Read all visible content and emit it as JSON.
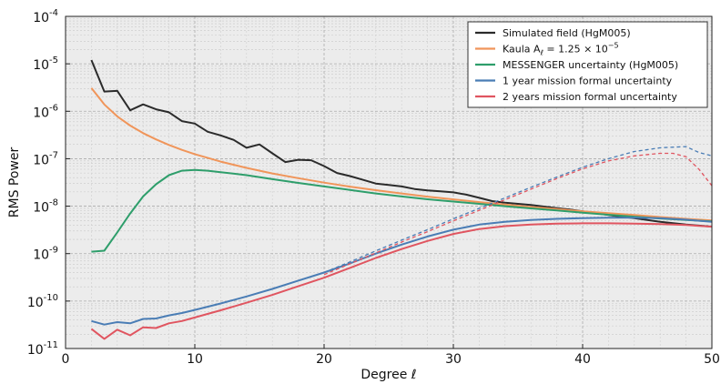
{
  "chart_data": {
    "type": "line",
    "xlabel": "Degree ℓ",
    "ylabel": "RMS Power",
    "xlim": [
      0,
      50
    ],
    "ylim": [
      1e-11,
      0.0001
    ],
    "yscale": "log",
    "grid": true,
    "legend_position": "top-right",
    "x_ticks": [
      "0",
      "10",
      "20",
      "30",
      "40",
      "50"
    ],
    "y_ticks": [
      {
        "base": "10",
        "exp": "-11"
      },
      {
        "base": "10",
        "exp": "-10"
      },
      {
        "base": "10",
        "exp": "-9"
      },
      {
        "base": "10",
        "exp": "-8"
      },
      {
        "base": "10",
        "exp": "-7"
      },
      {
        "base": "10",
        "exp": "-6"
      },
      {
        "base": "10",
        "exp": "-5"
      },
      {
        "base": "10",
        "exp": "-4"
      }
    ],
    "series": [
      {
        "name": "Simulated field (HgM005)",
        "color": "#2b2b2b",
        "style": "solid",
        "x": [
          2,
          3,
          4,
          5,
          6,
          7,
          8,
          9,
          10,
          11,
          12,
          13,
          14,
          15,
          16,
          17,
          18,
          19,
          20,
          21,
          22,
          23,
          24,
          25,
          26,
          27,
          28,
          29,
          30,
          31,
          32,
          33,
          34,
          35,
          36,
          37,
          38,
          39,
          40,
          41,
          42,
          43,
          44,
          45,
          46,
          47,
          48,
          49,
          50
        ],
        "values": [
          1.2e-05,
          2.6e-06,
          2.7e-06,
          1.05e-06,
          1.4e-06,
          1.1e-06,
          9.5e-07,
          6.2e-07,
          5.5e-07,
          3.7e-07,
          3.1e-07,
          2.5e-07,
          1.7e-07,
          2e-07,
          1.3e-07,
          8.5e-08,
          9.5e-08,
          9.3e-08,
          7e-08,
          5e-08,
          4.3e-08,
          3.6e-08,
          3e-08,
          2.8e-08,
          2.6e-08,
          2.3e-08,
          2.15e-08,
          2.05e-08,
          1.95e-08,
          1.75e-08,
          1.5e-08,
          1.28e-08,
          1.18e-08,
          1.12e-08,
          1.06e-08,
          9.8e-09,
          9.1e-09,
          8.5e-09,
          7.8e-09,
          7.1e-09,
          6.5e-09,
          6e-09,
          5.6e-09,
          5.1e-09,
          4.7e-09,
          4.4e-09,
          4.1e-09,
          3.9e-09,
          3.7e-09
        ]
      },
      {
        "name": "Kaula A_ℓ = 1.25 × 10⁻⁵",
        "legend_main": "Kaula A",
        "legend_sub": "ℓ",
        "legend_rest": " = 1.25  × 10",
        "legend_sup": "−5",
        "color": "#f0955a",
        "style": "solid",
        "x": [
          2,
          3,
          4,
          5,
          6,
          7,
          8,
          9,
          10,
          12,
          14,
          16,
          18,
          20,
          22,
          24,
          26,
          28,
          30,
          32,
          34,
          36,
          38,
          40,
          42,
          44,
          46,
          48,
          50
        ],
        "values": [
          3.1e-06,
          1.39e-06,
          7.8e-07,
          5e-07,
          3.47e-07,
          2.55e-07,
          1.95e-07,
          1.54e-07,
          1.25e-07,
          8.7e-08,
          6.4e-08,
          4.9e-08,
          3.9e-08,
          3.13e-08,
          2.58e-08,
          2.17e-08,
          1.85e-08,
          1.59e-08,
          1.39e-08,
          1.22e-08,
          1.08e-08,
          9.6e-09,
          8.7e-09,
          7.8e-09,
          7.1e-09,
          6.5e-09,
          5.9e-09,
          5.4e-09,
          5e-09
        ]
      },
      {
        "name": "MESSENGER uncertainty (HgM005)",
        "color": "#2e9e6b",
        "style": "solid",
        "x": [
          2,
          3,
          4,
          5,
          6,
          7,
          8,
          9,
          10,
          11,
          12,
          14,
          16,
          18,
          20,
          22,
          24,
          26,
          28,
          30,
          32,
          34,
          36,
          38,
          40,
          42,
          44,
          46,
          48,
          50
        ],
        "values": [
          1.1e-09,
          1.15e-09,
          2.8e-09,
          7e-09,
          1.6e-08,
          2.9e-08,
          4.5e-08,
          5.6e-08,
          5.8e-08,
          5.6e-08,
          5.2e-08,
          4.5e-08,
          3.7e-08,
          3.1e-08,
          2.6e-08,
          2.2e-08,
          1.85e-08,
          1.6e-08,
          1.4e-08,
          1.25e-08,
          1.12e-08,
          1e-08,
          9e-09,
          8.1e-09,
          7.3e-09,
          6.6e-09,
          6e-09,
          5.5e-09,
          5.1e-09,
          4.8e-09
        ]
      },
      {
        "name": "1 year mission formal uncertainty",
        "color": "#4a7db5",
        "style": "solid",
        "x": [
          2,
          3,
          4,
          5,
          6,
          7,
          8,
          9,
          10,
          12,
          14,
          16,
          18,
          20,
          22,
          24,
          26,
          28,
          30,
          32,
          34,
          36,
          38,
          40,
          42,
          44,
          46,
          48,
          50
        ],
        "values": [
          3.8e-11,
          3.2e-11,
          3.6e-11,
          3.4e-11,
          4.2e-11,
          4.3e-11,
          5e-11,
          5.6e-11,
          6.5e-11,
          8.9e-11,
          1.25e-10,
          1.8e-10,
          2.7e-10,
          4e-10,
          6.2e-10,
          1e-09,
          1.55e-09,
          2.3e-09,
          3.2e-09,
          4.1e-09,
          4.7e-09,
          5.1e-09,
          5.4e-09,
          5.6e-09,
          5.7e-09,
          5.7e-09,
          5.6e-09,
          5.2e-09,
          4.7e-09
        ]
      },
      {
        "name": "1 year mission formal uncertainty (extrapolated)",
        "color": "#4a7db5",
        "style": "dashed",
        "x": [
          20,
          22,
          24,
          26,
          28,
          30,
          32,
          34,
          36,
          38,
          40,
          42,
          44,
          46,
          48,
          49,
          50
        ],
        "values": [
          4e-10,
          6.7e-10,
          1.14e-09,
          1.92e-09,
          3.2e-09,
          5.4e-09,
          9e-09,
          1.5e-08,
          2.5e-08,
          4.1e-08,
          6.6e-08,
          1e-07,
          1.42e-07,
          1.7e-07,
          1.8e-07,
          1.35e-07,
          1.15e-07
        ]
      },
      {
        "name": "2 years mission formal uncertainty",
        "color": "#e05560",
        "style": "solid",
        "x": [
          2,
          3,
          4,
          5,
          6,
          7,
          8,
          9,
          10,
          12,
          14,
          16,
          18,
          20,
          22,
          24,
          26,
          28,
          30,
          32,
          34,
          36,
          38,
          40,
          42,
          44,
          46,
          48,
          50
        ],
        "values": [
          2.6e-11,
          1.6e-11,
          2.5e-11,
          1.9e-11,
          2.8e-11,
          2.7e-11,
          3.4e-11,
          3.8e-11,
          4.5e-11,
          6.4e-11,
          9.2e-11,
          1.35e-10,
          2.05e-10,
          3.1e-10,
          5e-10,
          8.1e-10,
          1.25e-09,
          1.85e-09,
          2.6e-09,
          3.3e-09,
          3.8e-09,
          4.1e-09,
          4.3e-09,
          4.35e-09,
          4.35e-09,
          4.3e-09,
          4.2e-09,
          4e-09,
          3.7e-09
        ]
      },
      {
        "name": "2 years mission formal uncertainty (extrapolated)",
        "color": "#e05560",
        "style": "dashed",
        "x": [
          20,
          22,
          24,
          26,
          28,
          30,
          32,
          34,
          36,
          38,
          40,
          42,
          44,
          46,
          47,
          48,
          49,
          50
        ],
        "values": [
          3.6e-10,
          6.1e-10,
          1.03e-09,
          1.75e-09,
          2.9e-09,
          4.9e-09,
          8.2e-09,
          1.37e-08,
          2.28e-08,
          3.8e-08,
          6.1e-08,
          9e-08,
          1.15e-07,
          1.3e-07,
          1.3e-07,
          1.1e-07,
          6e-08,
          2.7e-08
        ]
      }
    ],
    "legend": [
      {
        "label": "Simulated field (HgM005)",
        "color": "#2b2b2b"
      },
      {
        "label": "Kaula",
        "color": "#f0955a"
      },
      {
        "label": "MESSENGER uncertainty (HgM005)",
        "color": "#2e9e6b"
      },
      {
        "label": "1 year mission formal uncertainty",
        "color": "#4a7db5"
      },
      {
        "label": "2 years mission formal uncertainty",
        "color": "#e05560"
      }
    ]
  }
}
